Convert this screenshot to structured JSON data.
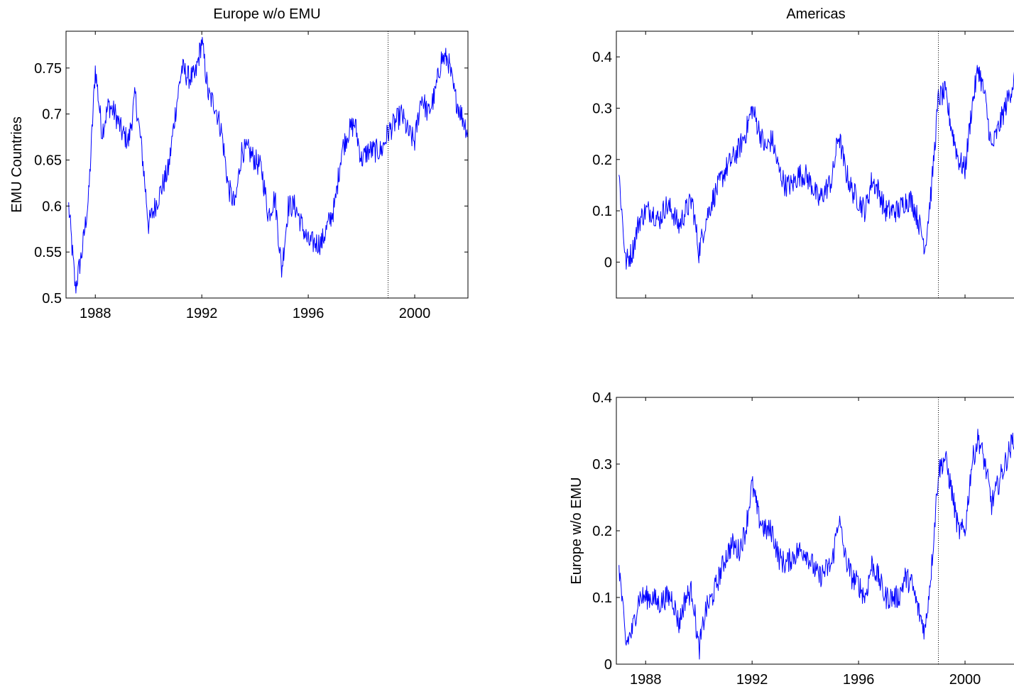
{
  "line_color": "#0000ff",
  "chart_data": [
    {
      "type": "line",
      "title": "Europe w/o EMU",
      "ylabel": "EMU Countries",
      "xlabel": "",
      "xlim": [
        1986.9,
        2002.0
      ],
      "ylim": [
        0.5,
        0.79
      ],
      "xticks": [
        1988,
        1992,
        1996,
        2000
      ],
      "xtick_labels": [
        "1988",
        "1992",
        "1996",
        "2000"
      ],
      "yticks": [
        0.5,
        0.55,
        0.6,
        0.65,
        0.7,
        0.75
      ],
      "ytick_labels": [
        "0.5",
        "0.55",
        "0.6",
        "0.65",
        "0.7",
        "0.75"
      ],
      "vline_x": 1999.0,
      "series": [
        {
          "x": [
            1987.0,
            1987.25,
            1987.5,
            1987.75,
            1988.0,
            1988.25,
            1988.5,
            1988.75,
            1989.0,
            1989.25,
            1989.5,
            1989.75,
            1990.0,
            1990.25,
            1990.5,
            1990.75,
            1991.0,
            1991.25,
            1991.5,
            1991.75,
            1992.0,
            1992.25,
            1992.5,
            1992.75,
            1993.0,
            1993.25,
            1993.5,
            1993.75,
            1994.0,
            1994.25,
            1994.5,
            1994.75,
            1995.0,
            1995.25,
            1995.5,
            1995.75,
            1996.0,
            1996.25,
            1996.5,
            1996.75,
            1997.0,
            1997.25,
            1997.5,
            1997.75,
            1998.0,
            1998.25,
            1998.5,
            1998.75,
            1999.0,
            1999.25,
            1999.5,
            1999.75,
            2000.0,
            2000.25,
            2000.5,
            2000.75,
            2001.0,
            2001.25,
            2001.5,
            2001.75,
            2002.0
          ],
          "values": [
            0.6,
            0.51,
            0.55,
            0.61,
            0.75,
            0.68,
            0.71,
            0.7,
            0.68,
            0.67,
            0.72,
            0.66,
            0.58,
            0.6,
            0.62,
            0.64,
            0.7,
            0.75,
            0.74,
            0.74,
            0.78,
            0.72,
            0.71,
            0.68,
            0.62,
            0.6,
            0.66,
            0.66,
            0.65,
            0.64,
            0.59,
            0.61,
            0.53,
            0.6,
            0.6,
            0.58,
            0.56,
            0.56,
            0.56,
            0.58,
            0.6,
            0.66,
            0.68,
            0.69,
            0.65,
            0.66,
            0.66,
            0.66,
            0.68,
            0.69,
            0.7,
            0.68,
            0.67,
            0.72,
            0.7,
            0.72,
            0.76,
            0.76,
            0.72,
            0.7,
            0.68
          ]
        }
      ]
    },
    {
      "type": "line",
      "title": "Americas",
      "ylabel": "",
      "xlabel": "",
      "xlim": [
        1986.9,
        2002.0
      ],
      "ylim": [
        -0.07,
        0.45
      ],
      "xticks": [
        1988,
        1992,
        1996,
        2000
      ],
      "xtick_labels": [],
      "yticks": [
        0,
        0.1,
        0.2,
        0.3,
        0.4
      ],
      "ytick_labels": [
        "0",
        "0.1",
        "0.2",
        "0.3",
        "0.4"
      ],
      "vline_x": 1999.0,
      "series": [
        {
          "x": [
            1987.0,
            1987.25,
            1987.5,
            1987.75,
            1988.0,
            1988.25,
            1988.5,
            1988.75,
            1989.0,
            1989.25,
            1989.5,
            1989.75,
            1990.0,
            1990.25,
            1990.5,
            1990.75,
            1991.0,
            1991.25,
            1991.5,
            1991.75,
            1992.0,
            1992.25,
            1992.5,
            1992.75,
            1993.0,
            1993.25,
            1993.5,
            1993.75,
            1994.0,
            1994.25,
            1994.5,
            1994.75,
            1995.0,
            1995.25,
            1995.5,
            1995.75,
            1996.0,
            1996.25,
            1996.5,
            1996.75,
            1997.0,
            1997.25,
            1997.5,
            1997.75,
            1998.0,
            1998.25,
            1998.5,
            1998.75,
            1999.0,
            1999.25,
            1999.5,
            1999.75,
            2000.0,
            2000.25,
            2000.5,
            2000.75,
            2001.0,
            2001.25,
            2001.5,
            2001.75,
            2002.0
          ],
          "values": [
            0.17,
            0.0,
            0.02,
            0.08,
            0.1,
            0.1,
            0.08,
            0.11,
            0.1,
            0.07,
            0.1,
            0.12,
            0.02,
            0.08,
            0.12,
            0.15,
            0.18,
            0.2,
            0.22,
            0.25,
            0.3,
            0.26,
            0.22,
            0.24,
            0.18,
            0.15,
            0.15,
            0.17,
            0.17,
            0.15,
            0.12,
            0.14,
            0.16,
            0.25,
            0.18,
            0.14,
            0.12,
            0.1,
            0.16,
            0.14,
            0.1,
            0.1,
            0.1,
            0.12,
            0.12,
            0.08,
            0.03,
            0.15,
            0.32,
            0.33,
            0.26,
            0.2,
            0.18,
            0.3,
            0.38,
            0.32,
            0.22,
            0.26,
            0.3,
            0.34,
            0.38
          ]
        }
      ]
    },
    {
      "type": "line",
      "title": "",
      "ylabel": "Europe w/o EMU",
      "xlabel": "",
      "xlim": [
        1986.9,
        2002.0
      ],
      "ylim": [
        0,
        0.4
      ],
      "xticks": [
        1988,
        1992,
        1996,
        2000
      ],
      "xtick_labels": [
        "1988",
        "1992",
        "1996",
        "2000"
      ],
      "yticks": [
        0,
        0.1,
        0.2,
        0.3,
        0.4
      ],
      "ytick_labels": [
        "0",
        "0.1",
        "0.2",
        "0.3",
        "0.4"
      ],
      "vline_x": 1999.0,
      "series": [
        {
          "x": [
            1987.0,
            1987.25,
            1987.5,
            1987.75,
            1988.0,
            1988.25,
            1988.5,
            1988.75,
            1989.0,
            1989.25,
            1989.5,
            1989.75,
            1990.0,
            1990.25,
            1990.5,
            1990.75,
            1991.0,
            1991.25,
            1991.5,
            1991.75,
            1992.0,
            1992.25,
            1992.5,
            1992.75,
            1993.0,
            1993.25,
            1993.5,
            1993.75,
            1994.0,
            1994.25,
            1994.5,
            1994.75,
            1995.0,
            1995.25,
            1995.5,
            1995.75,
            1996.0,
            1996.25,
            1996.5,
            1996.75,
            1997.0,
            1997.25,
            1997.5,
            1997.75,
            1998.0,
            1998.25,
            1998.5,
            1998.75,
            1999.0,
            1999.25,
            1999.5,
            1999.75,
            2000.0,
            2000.25,
            2000.5,
            2000.75,
            2001.0,
            2001.25,
            2001.5,
            2001.75,
            2002.0
          ],
          "values": [
            0.15,
            0.03,
            0.05,
            0.1,
            0.1,
            0.1,
            0.09,
            0.1,
            0.1,
            0.06,
            0.1,
            0.11,
            0.02,
            0.08,
            0.1,
            0.13,
            0.16,
            0.18,
            0.17,
            0.2,
            0.27,
            0.22,
            0.2,
            0.2,
            0.16,
            0.15,
            0.16,
            0.17,
            0.17,
            0.15,
            0.13,
            0.14,
            0.15,
            0.22,
            0.16,
            0.13,
            0.12,
            0.1,
            0.15,
            0.13,
            0.1,
            0.1,
            0.1,
            0.13,
            0.12,
            0.08,
            0.05,
            0.15,
            0.29,
            0.31,
            0.26,
            0.2,
            0.2,
            0.3,
            0.34,
            0.3,
            0.24,
            0.27,
            0.3,
            0.33,
            0.36
          ]
        }
      ]
    }
  ]
}
